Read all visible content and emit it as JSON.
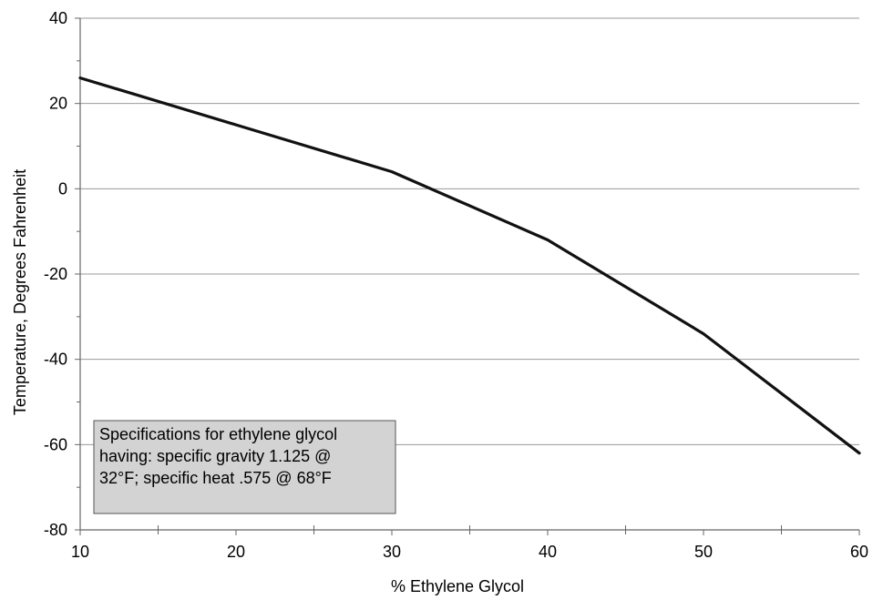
{
  "chart_data": {
    "type": "line",
    "title": "",
    "xlabel": "% Ethylene Glycol",
    "ylabel": "Temperature, Degrees Fahrenheit",
    "xlim": [
      10,
      60
    ],
    "ylim": [
      -80,
      40
    ],
    "x_ticks": [
      10,
      20,
      30,
      40,
      50,
      60
    ],
    "x_minor_ticks": [
      15,
      25,
      35,
      45,
      55
    ],
    "y_ticks": [
      -80,
      -60,
      -40,
      -20,
      0,
      20,
      40
    ],
    "y_minor_ticks": [
      -70,
      -50,
      -30,
      -10,
      10,
      30
    ],
    "grid": "horizontal",
    "series": [
      {
        "x": [
          10,
          20,
          30,
          40,
          50,
          60
        ],
        "values": [
          26,
          15,
          4,
          -12,
          -34,
          -62
        ],
        "color": "#111111"
      }
    ],
    "annotation": {
      "lines": [
        "Specifications for ethylene glycol",
        "having: specific gravity 1.125 @",
        "32°F; specific heat .575 @ 68°F"
      ],
      "background": "#d3d3d3"
    }
  }
}
